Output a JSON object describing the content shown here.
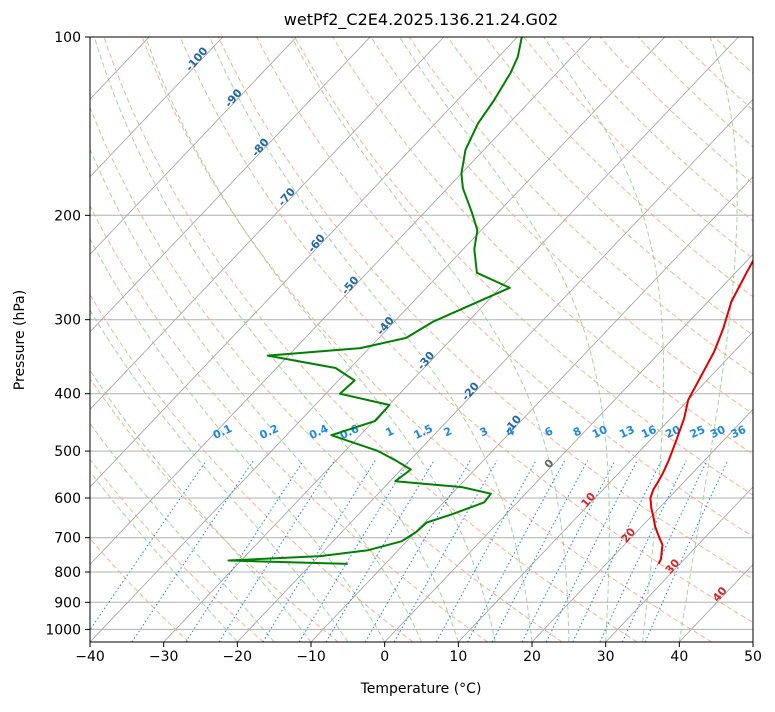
{
  "chart_data": {
    "type": "line",
    "title": "wetPf2_C2E4.2025.136.21.24.G02",
    "xlabel": "Temperature (°C)",
    "ylabel": "Pressure (hPa)",
    "xlim": [
      -40,
      50
    ],
    "ylim": [
      1050,
      100
    ],
    "y_scale": "log",
    "skew": "skew-T log-p",
    "grid": true,
    "x_ticks": [
      -40,
      -30,
      -20,
      -10,
      0,
      10,
      20,
      30,
      40,
      50
    ],
    "y_ticks": [
      100,
      200,
      300,
      400,
      500,
      600,
      700,
      800,
      900,
      1000
    ],
    "colors": {
      "temperature": "#e00000",
      "dewpoint": "#008000",
      "dry_adiabats": "#f4a582",
      "moist_adiabats": "#8cc98c",
      "mixing_ratio": "#1e88e5",
      "isotherms": "#a0a0a0",
      "theta_labels": "#2166ac",
      "red_labels": "#d62728"
    },
    "series": [
      {
        "key": "temperature",
        "color": "#e00000",
        "points": [
          [
            27.1,
            775
          ],
          [
            26.8,
            760
          ],
          [
            26.0,
            740
          ],
          [
            25.2,
            720
          ],
          [
            23.5,
            695
          ],
          [
            21.8,
            670
          ],
          [
            20.3,
            645
          ],
          [
            19.0,
            625
          ],
          [
            17.5,
            600
          ],
          [
            16.8,
            580
          ],
          [
            16.5,
            565
          ],
          [
            16.0,
            545
          ],
          [
            15.2,
            520
          ],
          [
            13.6,
            480
          ],
          [
            11.8,
            440
          ],
          [
            10.0,
            410
          ],
          [
            8.9,
            380
          ],
          [
            7.3,
            340
          ],
          [
            5.5,
            310
          ],
          [
            3.2,
            280
          ],
          [
            1.5,
            250
          ],
          [
            -0.3,
            220
          ],
          [
            -1.8,
            195
          ],
          [
            -2.0,
            180
          ],
          [
            -1.0,
            165
          ],
          [
            0.0,
            150
          ],
          [
            0.7,
            130
          ],
          [
            0.0,
            118
          ],
          [
            -2.0,
            110
          ],
          [
            -5.5,
            100
          ]
        ]
      },
      {
        "key": "dewpoint",
        "color": "#008000",
        "points": [
          [
            -15.1,
            775
          ],
          [
            -31.7,
            765
          ],
          [
            -19.8,
            752
          ],
          [
            -14.1,
            735
          ],
          [
            -10.7,
            710
          ],
          [
            -9.9,
            685
          ],
          [
            -9.7,
            660
          ],
          [
            -7.4,
            640
          ],
          [
            -4.5,
            610
          ],
          [
            -4.7,
            590
          ],
          [
            -9.5,
            575
          ],
          [
            -19.3,
            562
          ],
          [
            -18.7,
            537
          ],
          [
            -22.0,
            518
          ],
          [
            -25.5,
            500
          ],
          [
            -33.9,
            470
          ],
          [
            -29.8,
            445
          ],
          [
            -29.9,
            418
          ],
          [
            -38.1,
            400
          ],
          [
            -37.8,
            380
          ],
          [
            -42.0,
            362
          ],
          [
            -52.8,
            345
          ],
          [
            -41.2,
            335
          ],
          [
            -36.3,
            322
          ],
          [
            -34.7,
            302
          ],
          [
            -30.9,
            278
          ],
          [
            -28.7,
            265
          ],
          [
            -35.1,
            250
          ],
          [
            -38.5,
            228
          ],
          [
            -40.5,
            212
          ],
          [
            -43.5,
            198
          ],
          [
            -47.9,
            180
          ],
          [
            -50.0,
            170
          ],
          [
            -52.5,
            155
          ],
          [
            -54.2,
            140
          ],
          [
            -55.0,
            128
          ],
          [
            -56.3,
            115
          ],
          [
            -57.4,
            108
          ],
          [
            -59.4,
            100
          ]
        ]
      }
    ],
    "dry_adiabat_labels": [
      "-100",
      "-90",
      "-80",
      "-70",
      "-60",
      "-50",
      "-40",
      "-30",
      "-20",
      "-10",
      "0"
    ],
    "moist_adiabat_labels": [
      "10",
      "20",
      "30",
      "40"
    ],
    "mixing_ratio_labels": [
      "0.1",
      "0.2",
      "0.4",
      "0.6",
      "1",
      "1.5",
      "2",
      "3",
      "4",
      "6",
      "8",
      "10",
      "13",
      "16",
      "20",
      "25",
      "30",
      "36"
    ]
  }
}
